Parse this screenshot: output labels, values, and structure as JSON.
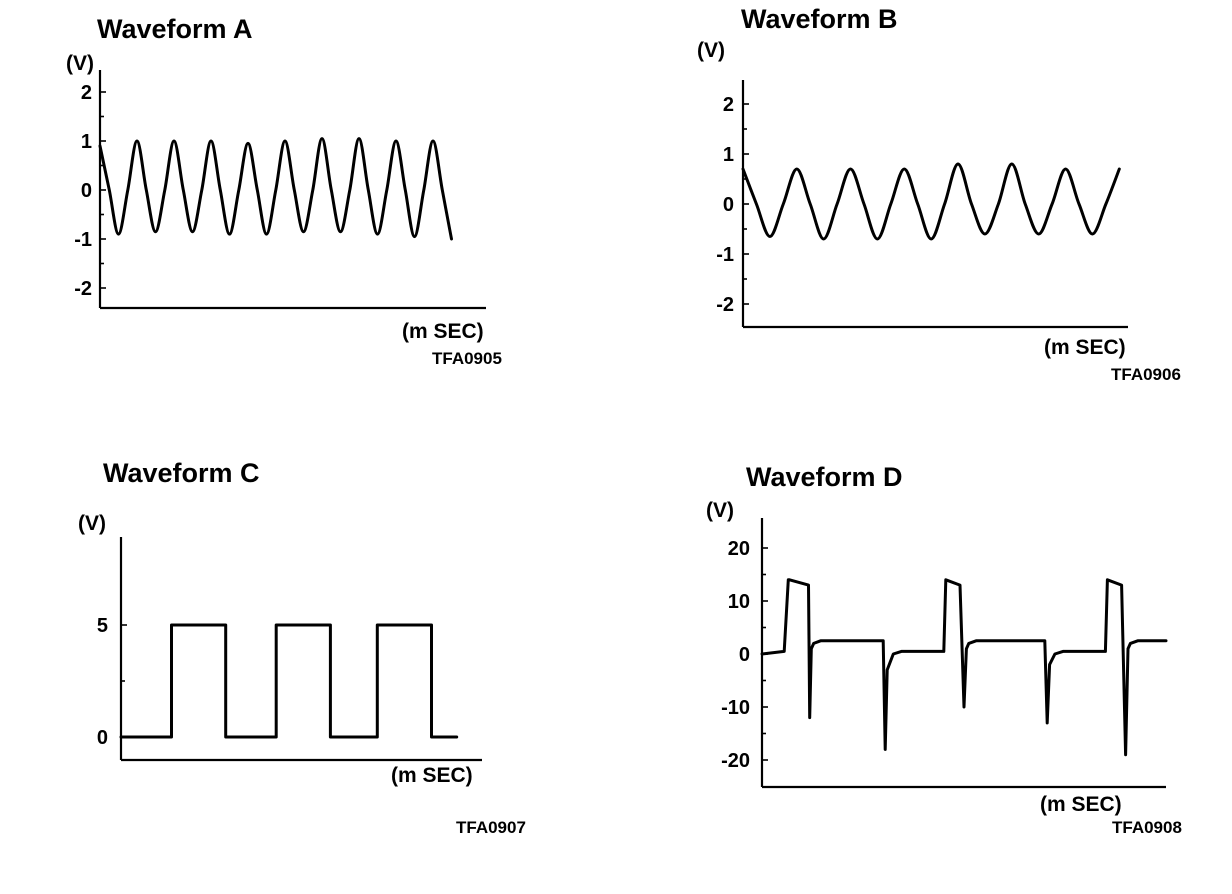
{
  "chart_data": [
    {
      "id": "A",
      "type": "line",
      "title": "Waveform A",
      "ylabel": "(V)",
      "xlabel": "(m SEC)",
      "code": "TFA0905",
      "yticks": [
        2,
        1,
        0,
        -1,
        -2
      ],
      "ytick_labels": [
        "2",
        "1",
        "0",
        "-1",
        "-2"
      ],
      "ylim": [
        -2.4,
        2.4
      ],
      "xlim": [
        0,
        10
      ],
      "series": [
        {
          "x": [
            0,
            0.25,
            0.5,
            0.75,
            1,
            1.25,
            1.5,
            1.75,
            2,
            2.25,
            2.5,
            2.75,
            3,
            3.25,
            3.5,
            3.75,
            4,
            4.25,
            4.5,
            4.75,
            5,
            5.25,
            5.5,
            5.75,
            6,
            6.25,
            6.5,
            6.75,
            7,
            7.25,
            7.5,
            7.75,
            8,
            8.25,
            8.5,
            8.75,
            9,
            9.25,
            9.5
          ],
          "y": [
            0.9,
            0,
            -0.9,
            0,
            1.0,
            0,
            -0.85,
            0,
            1.0,
            0,
            -0.85,
            0,
            1.0,
            0,
            -0.9,
            0,
            0.95,
            0,
            -0.9,
            0,
            1.0,
            0,
            -0.85,
            0,
            1.05,
            0,
            -0.85,
            0,
            1.05,
            0,
            -0.9,
            0,
            1.0,
            0,
            -0.95,
            0,
            1.0,
            0,
            -1.0
          ]
        }
      ]
    },
    {
      "id": "B",
      "type": "line",
      "title": "Waveform B",
      "ylabel": "(V)",
      "xlabel": "(m SEC)",
      "code": "TFA0906",
      "yticks": [
        2,
        1,
        0,
        -1,
        -2
      ],
      "ytick_labels": [
        "2",
        "1",
        "0",
        "-1",
        "-2"
      ],
      "ylim": [
        -2.5,
        2.5
      ],
      "xlim": [
        0,
        10
      ],
      "series": [
        {
          "x": [
            0,
            0.35,
            0.7,
            1.05,
            1.4,
            1.75,
            2.1,
            2.45,
            2.8,
            3.15,
            3.5,
            3.85,
            4.2,
            4.55,
            4.9,
            5.25,
            5.6,
            5.95,
            6.3,
            6.65,
            7.0,
            7.35,
            7.7,
            8.05,
            8.4,
            8.75,
            9.1,
            9.45,
            9.8
          ],
          "y": [
            0.7,
            0,
            -0.65,
            0,
            0.7,
            0,
            -0.7,
            0,
            0.7,
            0,
            -0.7,
            0,
            0.7,
            0,
            -0.7,
            0,
            0.8,
            0,
            -0.6,
            0,
            0.8,
            0,
            -0.6,
            0,
            0.7,
            0,
            -0.6,
            0,
            0.7
          ]
        }
      ]
    },
    {
      "id": "C",
      "type": "line",
      "title": "Waveform C",
      "ylabel": "(V)",
      "xlabel": "(m SEC)",
      "code": "TFA0907",
      "yticks": [
        5,
        0
      ],
      "ytick_labels": [
        "5",
        "0"
      ],
      "ylim": [
        -1,
        9
      ],
      "xlim": [
        0,
        10
      ],
      "series": [
        {
          "x": [
            0,
            1.4,
            1.4,
            2.9,
            2.9,
            4.3,
            4.3,
            5.8,
            5.8,
            7.1,
            7.1,
            8.6,
            8.6,
            9.3
          ],
          "y": [
            0,
            0,
            5,
            5,
            0,
            0,
            5,
            5,
            0,
            0,
            5,
            5,
            0,
            0
          ]
        }
      ]
    },
    {
      "id": "D",
      "type": "line",
      "title": "Waveform D",
      "ylabel": "(V)",
      "xlabel": "(m SEC)",
      "code": "TFA0908",
      "yticks": [
        20,
        10,
        0,
        -10,
        -20
      ],
      "ytick_labels": [
        "20",
        "10",
        "0",
        "-10",
        "-20"
      ],
      "ylim": [
        -25,
        25
      ],
      "xlim": [
        0,
        10
      ],
      "series": [
        {
          "x": [
            0,
            0.55,
            0.65,
            0.68,
            1.15,
            1.18,
            1.22,
            1.28,
            1.45,
            3.0,
            3.05,
            3.1,
            3.25,
            3.45,
            4.5,
            4.55,
            4.9,
            5.0,
            5.06,
            5.12,
            5.3,
            7.0,
            7.06,
            7.12,
            7.25,
            7.45,
            8.5,
            8.55,
            8.9,
            9.0,
            9.06,
            9.12,
            9.3,
            10.0
          ],
          "y": [
            0,
            0.5,
            14,
            14,
            13,
            -12,
            1,
            2,
            2.5,
            2.5,
            -18,
            -3,
            0,
            0.5,
            0.5,
            14,
            13,
            -10,
            1,
            2,
            2.5,
            2.5,
            -13,
            -2,
            0,
            0.5,
            0.5,
            14,
            13,
            -19,
            1,
            2,
            2.5,
            2.5
          ]
        }
      ]
    }
  ]
}
